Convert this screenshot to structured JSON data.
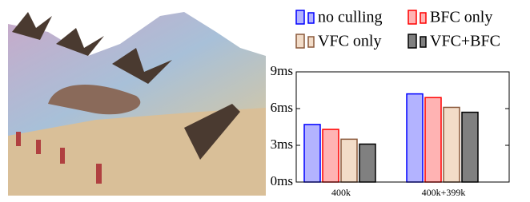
{
  "chart_data": {
    "type": "bar",
    "categories": [
      "400k",
      "400k+399k"
    ],
    "series": [
      {
        "name": "no culling",
        "color": "#b3b3ff",
        "stroke": "#0000ff",
        "values": [
          4.7,
          7.2
        ]
      },
      {
        "name": "BFC only",
        "color": "#ffb3b3",
        "stroke": "#ff0000",
        "values": [
          4.3,
          6.9
        ]
      },
      {
        "name": "VFC only",
        "color": "#f2dcc8",
        "stroke": "#8b5a3c",
        "values": [
          3.5,
          6.1
        ]
      },
      {
        "name": "VFC+BFC",
        "color": "#808080",
        "stroke": "#000000",
        "values": [
          3.1,
          5.7
        ]
      }
    ],
    "ylim": [
      0,
      9
    ],
    "yticks": [
      {
        "value": 0,
        "label": "0ms"
      },
      {
        "value": 3,
        "label": "3ms"
      },
      {
        "value": 6,
        "label": "6ms"
      },
      {
        "value": 9,
        "label": "9ms"
      }
    ]
  }
}
